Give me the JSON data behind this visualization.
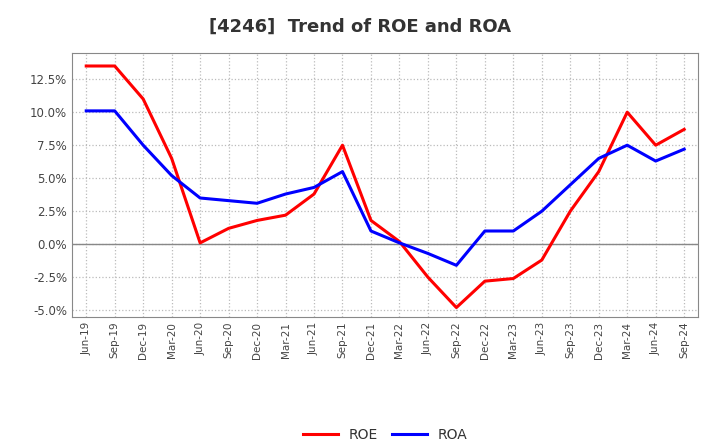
{
  "title": "[4246]  Trend of ROE and ROA",
  "x_labels": [
    "Jun-19",
    "Sep-19",
    "Dec-19",
    "Mar-20",
    "Jun-20",
    "Sep-20",
    "Dec-20",
    "Mar-21",
    "Jun-21",
    "Sep-21",
    "Dec-21",
    "Mar-22",
    "Jun-22",
    "Sep-22",
    "Dec-22",
    "Mar-23",
    "Jun-23",
    "Sep-23",
    "Dec-23",
    "Mar-24",
    "Jun-24",
    "Sep-24"
  ],
  "roe": [
    13.5,
    13.5,
    11.0,
    6.5,
    0.1,
    1.2,
    1.8,
    2.2,
    3.8,
    7.5,
    1.8,
    0.2,
    -2.5,
    -4.8,
    -2.8,
    -2.6,
    -1.2,
    2.5,
    5.5,
    10.0,
    7.5,
    8.7
  ],
  "roa": [
    10.1,
    10.1,
    7.5,
    5.2,
    3.5,
    3.3,
    3.1,
    3.8,
    4.3,
    5.5,
    1.0,
    0.1,
    -0.7,
    -1.6,
    1.0,
    1.0,
    2.5,
    4.5,
    6.5,
    7.5,
    6.3,
    7.2
  ],
  "roe_color": "#ff0000",
  "roa_color": "#0000ff",
  "ylim": [
    -5.5,
    14.5
  ],
  "yticks": [
    -5.0,
    -2.5,
    0.0,
    2.5,
    5.0,
    7.5,
    10.0,
    12.5
  ],
  "background_color": "#ffffff",
  "plot_bg_color": "#ffffff",
  "grid_color": "#bbbbbb",
  "title_fontsize": 13,
  "line_width": 2.2
}
